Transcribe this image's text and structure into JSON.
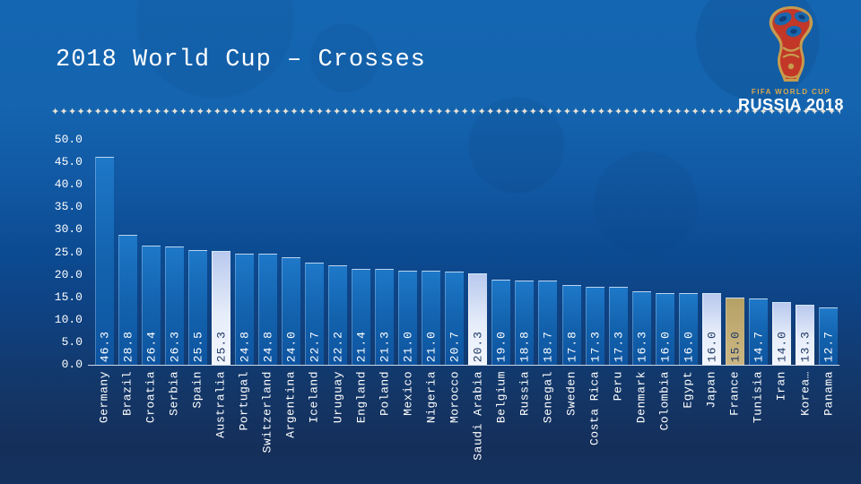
{
  "slide": {
    "title": "2018 World Cup – Crosses",
    "divider_glyph": "✦",
    "logo": {
      "fifa_line": "FIFA WORLD CUP",
      "russia_line": "RUSSIA 2018",
      "trademark": "™"
    }
  },
  "chart_data": {
    "type": "bar",
    "title": "2018 World Cup – Crosses",
    "categories": [
      "Germany",
      "Brazil",
      "Croatia",
      "Serbia",
      "Spain",
      "Australia",
      "Portugal",
      "Switzerland",
      "Argentina",
      "Iceland",
      "Uruguay",
      "England",
      "Poland",
      "Mexico",
      "Nigeria",
      "Morocco",
      "Saudi Arabia",
      "Belgium",
      "Russia",
      "Senegal",
      "Sweden",
      "Costa Rica",
      "Peru",
      "Denmark",
      "Colombia",
      "Egypt",
      "Japan",
      "France",
      "Tunisia",
      "Iran",
      "Korea…",
      "Panama"
    ],
    "values": [
      46.3,
      28.8,
      26.4,
      26.3,
      25.5,
      25.3,
      24.8,
      24.8,
      24.0,
      22.7,
      22.2,
      21.4,
      21.3,
      21.0,
      21.0,
      20.7,
      20.3,
      19.0,
      18.8,
      18.7,
      17.8,
      17.3,
      17.3,
      16.3,
      16.0,
      16.0,
      16.0,
      15.0,
      14.7,
      14.0,
      13.3,
      12.7
    ],
    "highlight_light": [
      "Australia",
      "Saudi Arabia",
      "Japan",
      "Iran",
      "Korea…"
    ],
    "highlight_gold": [
      "France"
    ],
    "xlabel": "",
    "ylabel": "",
    "ylim": [
      0,
      50
    ],
    "ytick_labels": [
      "50.0",
      "45.0",
      "40.0",
      "35.0",
      "30.0",
      "25.0",
      "20.0",
      "15.0",
      "10.0",
      "5.0",
      "0.0"
    ],
    "grid": false,
    "legend": false
  },
  "colors": {
    "background_top": "#1566B2",
    "background_bottom": "#14305C",
    "bar_blue_top": "#1E78C8",
    "bar_blue_bottom": "#0E54A0",
    "bar_light_top": "#B9C9EE",
    "bar_light_bottom": "#F2F6FD",
    "bar_gold_top": "#B5A065",
    "bar_gold_bottom": "#CBB684",
    "value_text_on_blue": "#FFFFFF",
    "value_text_on_highlight": "#1F3864",
    "axis_text": "#FFFFFF",
    "axis_line": "#CBD9EA",
    "divider": "#E9E5D9",
    "logo_gold": "#D9A94E",
    "logo_red": "#C23728",
    "logo_blue": "#1A67AE"
  }
}
